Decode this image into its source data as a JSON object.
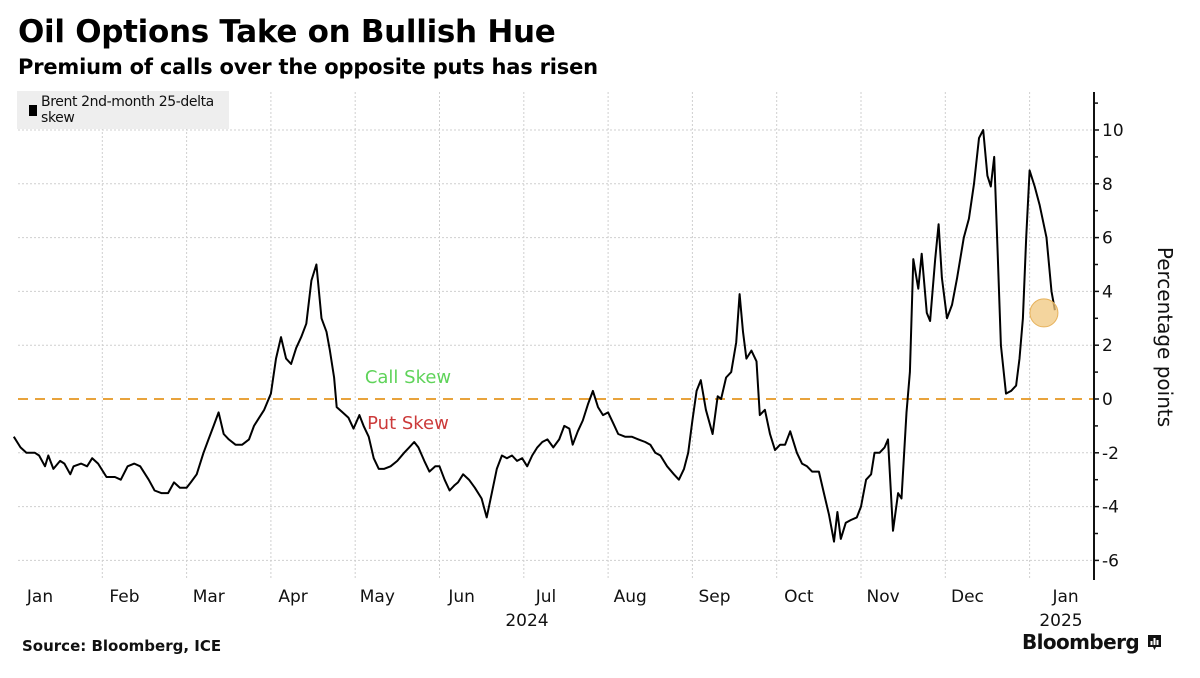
{
  "header": {
    "title": "Oil Options Take on Bullish Hue",
    "subtitle": "Premium of calls over the opposite puts has risen"
  },
  "legend": {
    "label": "Brent 2nd-month 25-delta skew"
  },
  "annotations": {
    "call_skew": "Call Skew",
    "put_skew": "Put Skew"
  },
  "footer": {
    "source": "Source: Bloomberg, ICE",
    "brand": "Bloomberg"
  },
  "colors": {
    "line": "#000000",
    "zero_line": "#e8a33c",
    "highlight": "#f0c77e",
    "call_skew": "#5fd35a",
    "put_skew": "#cc3a3a",
    "grid": "#cfcfcf"
  },
  "chart_data": {
    "type": "line",
    "title": "Oil Options Take on Bullish Hue",
    "subtitle": "Premium of calls over the opposite puts has risen",
    "xlabel": "",
    "ylabel": "Percentage points",
    "x_unit": "months since 2024-01-01",
    "xlim": [
      -0.05,
      12.35
    ],
    "ylim": [
      -6.6,
      11.2
    ],
    "y_ticks": [
      10,
      8,
      6,
      4,
      2,
      0,
      -2,
      -4,
      -6
    ],
    "x_tick_labels": [
      {
        "label": "Jan",
        "x": 0.0
      },
      {
        "label": "Feb",
        "x": 1.0
      },
      {
        "label": "Mar",
        "x": 2.0
      },
      {
        "label": "Apr",
        "x": 3.0
      },
      {
        "label": "May",
        "x": 4.0
      },
      {
        "label": "Jun",
        "x": 5.0
      },
      {
        "label": "Jul",
        "x": 6.0
      },
      {
        "label": "Aug",
        "x": 7.0
      },
      {
        "label": "Sep",
        "x": 8.0
      },
      {
        "label": "Oct",
        "x": 9.0
      },
      {
        "label": "Nov",
        "x": 10.0
      },
      {
        "label": "Dec",
        "x": 11.0
      },
      {
        "label": "Jan",
        "x": 12.0
      }
    ],
    "year_labels": [
      {
        "label": "2024",
        "x": 5.7
      },
      {
        "label": "2025",
        "x": 12.0
      }
    ],
    "grid": true,
    "legend": "top-left",
    "reference_line": {
      "y": 0,
      "style": "dashed"
    },
    "highlight_point": {
      "x": 12.17,
      "y": 3.2
    },
    "series": [
      {
        "name": "Brent 2nd-month 25-delta skew",
        "points": [
          [
            -0.05,
            -1.4
          ],
          [
            0.03,
            -1.8
          ],
          [
            0.1,
            -2.0
          ],
          [
            0.2,
            -2.0
          ],
          [
            0.25,
            -2.1
          ],
          [
            0.32,
            -2.5
          ],
          [
            0.36,
            -2.1
          ],
          [
            0.42,
            -2.6
          ],
          [
            0.5,
            -2.3
          ],
          [
            0.55,
            -2.4
          ],
          [
            0.62,
            -2.8
          ],
          [
            0.66,
            -2.5
          ],
          [
            0.75,
            -2.4
          ],
          [
            0.82,
            -2.5
          ],
          [
            0.88,
            -2.2
          ],
          [
            0.95,
            -2.4
          ],
          [
            1.05,
            -2.9
          ],
          [
            1.15,
            -2.9
          ],
          [
            1.22,
            -3.0
          ],
          [
            1.3,
            -2.5
          ],
          [
            1.38,
            -2.4
          ],
          [
            1.45,
            -2.5
          ],
          [
            1.55,
            -3.0
          ],
          [
            1.62,
            -3.4
          ],
          [
            1.7,
            -3.5
          ],
          [
            1.78,
            -3.5
          ],
          [
            1.85,
            -3.1
          ],
          [
            1.92,
            -3.3
          ],
          [
            2.0,
            -3.3
          ],
          [
            2.05,
            -3.1
          ],
          [
            2.12,
            -2.8
          ],
          [
            2.2,
            -2.0
          ],
          [
            2.26,
            -1.5
          ],
          [
            2.32,
            -1.0
          ],
          [
            2.38,
            -0.5
          ],
          [
            2.44,
            -1.3
          ],
          [
            2.5,
            -1.5
          ],
          [
            2.58,
            -1.7
          ],
          [
            2.66,
            -1.7
          ],
          [
            2.74,
            -1.5
          ],
          [
            2.8,
            -1.0
          ],
          [
            2.86,
            -0.7
          ],
          [
            2.92,
            -0.4
          ],
          [
            3.0,
            0.2
          ],
          [
            3.06,
            1.5
          ],
          [
            3.12,
            2.3
          ],
          [
            3.18,
            1.5
          ],
          [
            3.24,
            1.3
          ],
          [
            3.3,
            1.9
          ],
          [
            3.36,
            2.3
          ],
          [
            3.42,
            2.8
          ],
          [
            3.48,
            4.4
          ],
          [
            3.54,
            5.0
          ],
          [
            3.6,
            3.0
          ],
          [
            3.66,
            2.5
          ],
          [
            3.7,
            1.8
          ],
          [
            3.75,
            0.8
          ],
          [
            3.78,
            -0.3
          ],
          [
            3.85,
            -0.5
          ],
          [
            3.92,
            -0.7
          ],
          [
            3.98,
            -1.1
          ],
          [
            4.05,
            -0.6
          ],
          [
            4.1,
            -1.0
          ],
          [
            4.16,
            -1.4
          ],
          [
            4.22,
            -2.2
          ],
          [
            4.28,
            -2.6
          ],
          [
            4.34,
            -2.6
          ],
          [
            4.42,
            -2.5
          ],
          [
            4.5,
            -2.3
          ],
          [
            4.58,
            -2.0
          ],
          [
            4.64,
            -1.8
          ],
          [
            4.7,
            -1.6
          ],
          [
            4.75,
            -1.8
          ],
          [
            4.82,
            -2.3
          ],
          [
            4.88,
            -2.7
          ],
          [
            4.95,
            -2.5
          ],
          [
            5.0,
            -2.5
          ],
          [
            5.06,
            -3.0
          ],
          [
            5.12,
            -3.4
          ],
          [
            5.18,
            -3.2
          ],
          [
            5.22,
            -3.1
          ],
          [
            5.28,
            -2.8
          ],
          [
            5.35,
            -3.0
          ],
          [
            5.42,
            -3.3
          ],
          [
            5.5,
            -3.7
          ],
          [
            5.56,
            -4.4
          ],
          [
            5.62,
            -3.5
          ],
          [
            5.68,
            -2.6
          ],
          [
            5.74,
            -2.1
          ],
          [
            5.8,
            -2.2
          ],
          [
            5.86,
            -2.1
          ],
          [
            5.92,
            -2.3
          ],
          [
            5.98,
            -2.2
          ],
          [
            6.04,
            -2.5
          ],
          [
            6.1,
            -2.1
          ],
          [
            6.16,
            -1.8
          ],
          [
            6.22,
            -1.6
          ],
          [
            6.28,
            -1.5
          ],
          [
            6.35,
            -1.8
          ],
          [
            6.42,
            -1.5
          ],
          [
            6.48,
            -1.0
          ],
          [
            6.54,
            -1.1
          ],
          [
            6.58,
            -1.7
          ],
          [
            6.64,
            -1.2
          ],
          [
            6.7,
            -0.8
          ],
          [
            6.76,
            -0.2
          ],
          [
            6.82,
            0.3
          ],
          [
            6.88,
            -0.3
          ],
          [
            6.94,
            -0.6
          ],
          [
            7.0,
            -0.5
          ],
          [
            7.06,
            -0.9
          ],
          [
            7.12,
            -1.3
          ],
          [
            7.2,
            -1.4
          ],
          [
            7.28,
            -1.4
          ],
          [
            7.36,
            -1.5
          ],
          [
            7.44,
            -1.6
          ],
          [
            7.5,
            -1.7
          ],
          [
            7.56,
            -2.0
          ],
          [
            7.62,
            -2.1
          ],
          [
            7.7,
            -2.5
          ],
          [
            7.78,
            -2.8
          ],
          [
            7.84,
            -3.0
          ],
          [
            7.9,
            -2.6
          ],
          [
            7.95,
            -2.0
          ],
          [
            8.0,
            -0.8
          ],
          [
            8.05,
            0.3
          ],
          [
            8.1,
            0.7
          ],
          [
            8.16,
            -0.4
          ],
          [
            8.24,
            -1.3
          ],
          [
            8.3,
            0.1
          ],
          [
            8.34,
            0.0
          ],
          [
            8.4,
            0.8
          ],
          [
            8.46,
            1.0
          ],
          [
            8.52,
            2.1
          ],
          [
            8.56,
            3.9
          ],
          [
            8.6,
            2.5
          ],
          [
            8.64,
            1.5
          ],
          [
            8.7,
            1.8
          ],
          [
            8.76,
            1.4
          ],
          [
            8.8,
            -0.6
          ],
          [
            8.86,
            -0.4
          ],
          [
            8.92,
            -1.3
          ],
          [
            8.98,
            -1.9
          ],
          [
            9.04,
            -1.7
          ],
          [
            9.1,
            -1.7
          ],
          [
            9.16,
            -1.2
          ],
          [
            9.24,
            -2.0
          ],
          [
            9.3,
            -2.4
          ],
          [
            9.36,
            -2.5
          ],
          [
            9.42,
            -2.7
          ],
          [
            9.5,
            -2.7
          ],
          [
            9.56,
            -3.5
          ],
          [
            9.62,
            -4.3
          ],
          [
            9.68,
            -5.3
          ],
          [
            9.72,
            -4.2
          ],
          [
            9.76,
            -5.2
          ],
          [
            9.82,
            -4.6
          ],
          [
            9.88,
            -4.5
          ],
          [
            9.95,
            -4.4
          ],
          [
            10.0,
            -4.0
          ],
          [
            10.06,
            -3.0
          ],
          [
            10.12,
            -2.8
          ],
          [
            10.16,
            -2.0
          ],
          [
            10.22,
            -2.0
          ],
          [
            10.28,
            -1.8
          ],
          [
            10.32,
            -1.5
          ],
          [
            10.38,
            -4.9
          ],
          [
            10.44,
            -3.5
          ],
          [
            10.48,
            -3.7
          ],
          [
            10.54,
            -0.5
          ],
          [
            10.58,
            1.0
          ],
          [
            10.62,
            5.2
          ],
          [
            10.68,
            4.1
          ],
          [
            10.72,
            5.4
          ],
          [
            10.78,
            3.2
          ],
          [
            10.82,
            2.9
          ],
          [
            10.88,
            5.2
          ],
          [
            10.92,
            6.5
          ],
          [
            10.96,
            4.5
          ],
          [
            11.02,
            3.0
          ],
          [
            11.08,
            3.5
          ],
          [
            11.14,
            4.5
          ],
          [
            11.22,
            6.0
          ],
          [
            11.28,
            6.7
          ],
          [
            11.34,
            8.0
          ],
          [
            11.4,
            9.7
          ],
          [
            11.45,
            10.0
          ],
          [
            11.5,
            8.3
          ],
          [
            11.54,
            7.9
          ],
          [
            11.58,
            9.0
          ],
          [
            11.62,
            5.5
          ],
          [
            11.66,
            2.0
          ],
          [
            11.72,
            0.2
          ],
          [
            11.78,
            0.3
          ],
          [
            11.84,
            0.5
          ],
          [
            11.88,
            1.5
          ],
          [
            11.92,
            3.0
          ],
          [
            11.96,
            6.0
          ],
          [
            12.0,
            8.5
          ],
          [
            12.06,
            7.9
          ],
          [
            12.12,
            7.2
          ],
          [
            12.2,
            6.0
          ],
          [
            12.26,
            4.0
          ],
          [
            12.3,
            3.3
          ]
        ]
      }
    ]
  }
}
